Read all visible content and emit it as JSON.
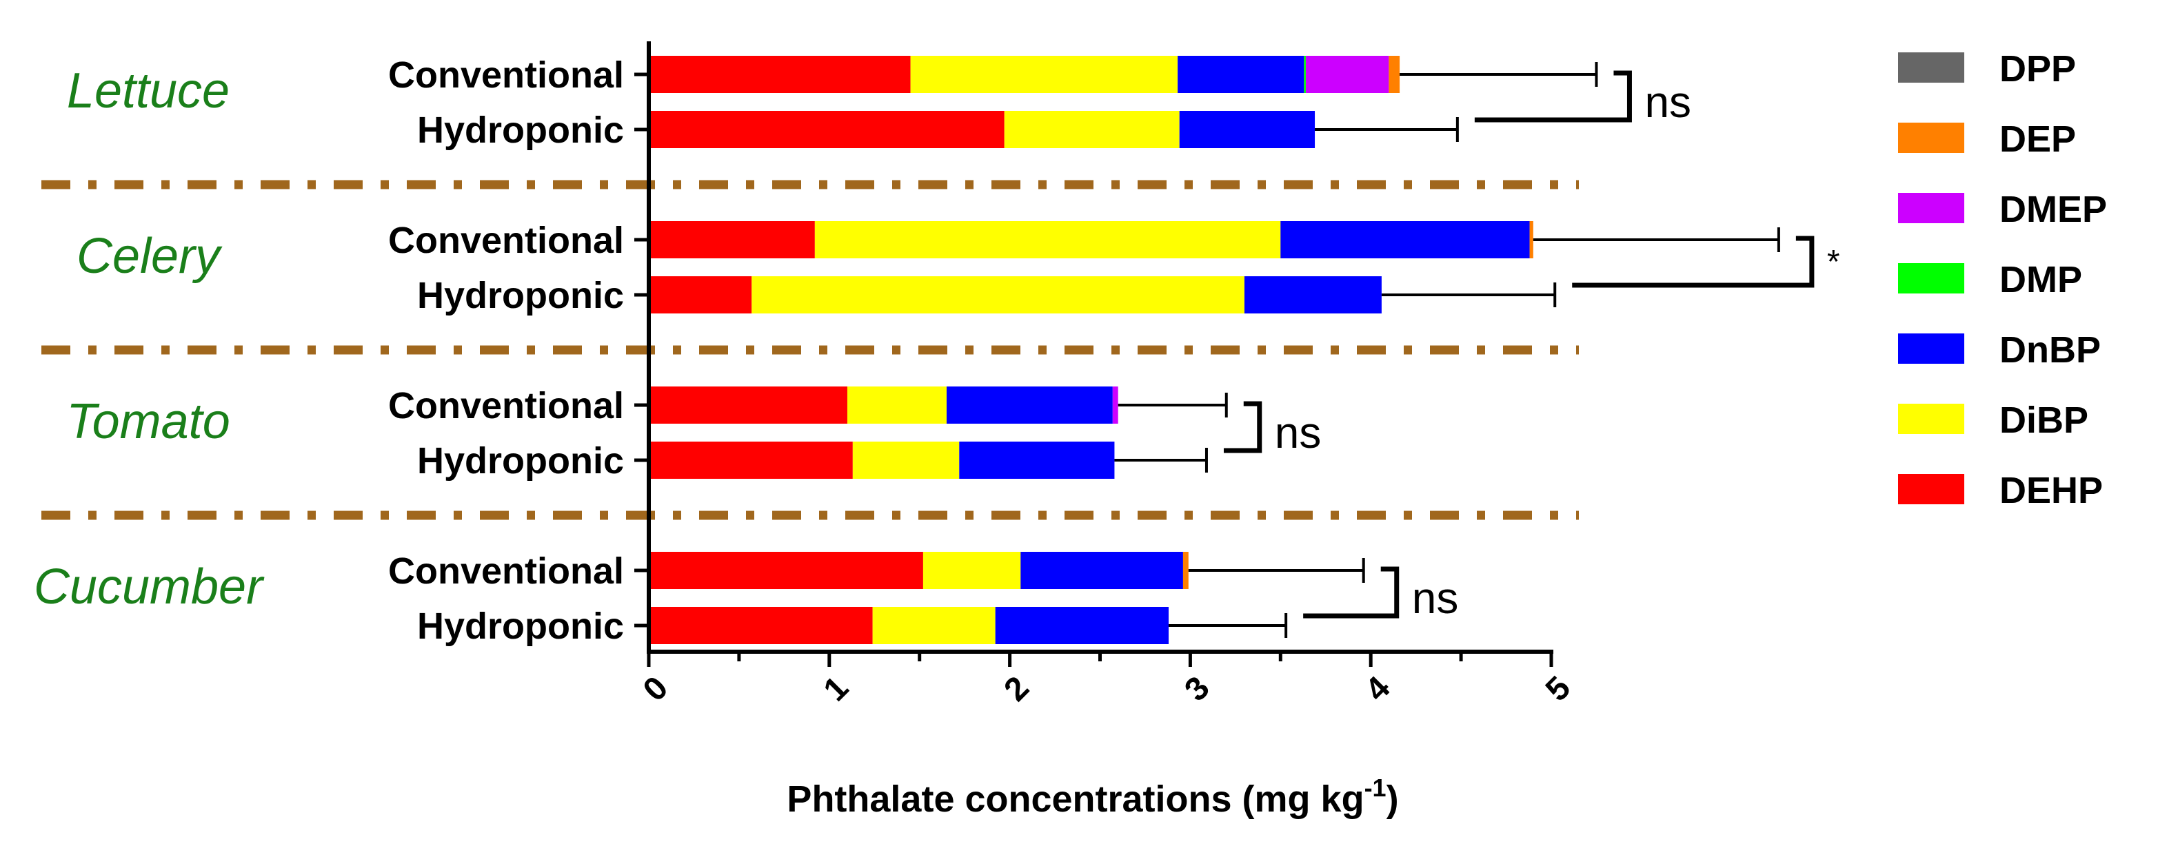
{
  "chart_data": {
    "type": "stacked-horizontal-bar",
    "xlabel": "Phthalate concentrations (mg kg",
    "xlabel_superscript": "-1",
    "xlim": [
      0,
      5
    ],
    "xticks": [
      "0",
      "1",
      "2",
      "3",
      "4",
      "5"
    ],
    "series_order": [
      "DEHP",
      "DiBP",
      "DnBP",
      "DMP",
      "DMEP",
      "DEP",
      "DPP"
    ],
    "legend": [
      {
        "name": "DPP",
        "color": "#666666"
      },
      {
        "name": "DEP",
        "color": "#ff8000"
      },
      {
        "name": "DMEP",
        "color": "#cc00ff"
      },
      {
        "name": "DMP",
        "color": "#00ff00"
      },
      {
        "name": "DnBP",
        "color": "#0000ff"
      },
      {
        "name": "DiBP",
        "color": "#ffff00"
      },
      {
        "name": "DEHP",
        "color": "#ff0000"
      }
    ],
    "groups": [
      {
        "crop": "Lettuce",
        "significance": "ns",
        "bars": [
          {
            "label": "Conventional",
            "values": {
              "DEHP": 1.45,
              "DiBP": 1.48,
              "DnBP": 0.7,
              "DMP": 0.01,
              "DMEP": 0.46,
              "DEP": 0.06,
              "DPP": 0.0
            },
            "error_upper": 5.25
          },
          {
            "label": "Hydroponic",
            "values": {
              "DEHP": 1.97,
              "DiBP": 0.97,
              "DnBP": 0.75,
              "DMP": 0.0,
              "DMEP": 0.0,
              "DEP": 0.0,
              "DPP": 0.0
            },
            "error_upper": 4.48
          }
        ]
      },
      {
        "crop": "Celery",
        "significance": "*",
        "bars": [
          {
            "label": "Conventional",
            "values": {
              "DEHP": 0.92,
              "DiBP": 2.58,
              "DnBP": 1.38,
              "DMP": 0.0,
              "DMEP": 0.0,
              "DEP": 0.02,
              "DPP": 0.0
            },
            "error_upper": 6.26
          },
          {
            "label": "Hydroponic",
            "values": {
              "DEHP": 0.57,
              "DiBP": 2.73,
              "DnBP": 0.76,
              "DMP": 0.0,
              "DMEP": 0.0,
              "DEP": 0.0,
              "DPP": 0.0
            },
            "error_upper": 5.02
          }
        ]
      },
      {
        "crop": "Tomato",
        "significance": "ns",
        "bars": [
          {
            "label": "Conventional",
            "values": {
              "DEHP": 1.1,
              "DiBP": 0.55,
              "DnBP": 0.92,
              "DMP": 0.0,
              "DMEP": 0.03,
              "DEP": 0.0,
              "DPP": 0.0
            },
            "error_upper": 3.2
          },
          {
            "label": "Hydroponic",
            "values": {
              "DEHP": 1.13,
              "DiBP": 0.59,
              "DnBP": 0.86,
              "DMP": 0.0,
              "DMEP": 0.0,
              "DEP": 0.0,
              "DPP": 0.0
            },
            "error_upper": 3.09
          }
        ]
      },
      {
        "crop": "Cucumber",
        "significance": "ns",
        "bars": [
          {
            "label": "Conventional",
            "values": {
              "DEHP": 1.52,
              "DiBP": 0.54,
              "DnBP": 0.9,
              "DMP": 0.0,
              "DMEP": 0.0,
              "DEP": 0.03,
              "DPP": 0.0
            },
            "error_upper": 3.96
          },
          {
            "label": "Hydroponic",
            "values": {
              "DEHP": 1.24,
              "DiBP": 0.68,
              "DnBP": 0.96,
              "DMP": 0.0,
              "DMEP": 0.0,
              "DEP": 0.0,
              "DPP": 0.0
            },
            "error_upper": 3.53
          }
        ]
      }
    ]
  }
}
